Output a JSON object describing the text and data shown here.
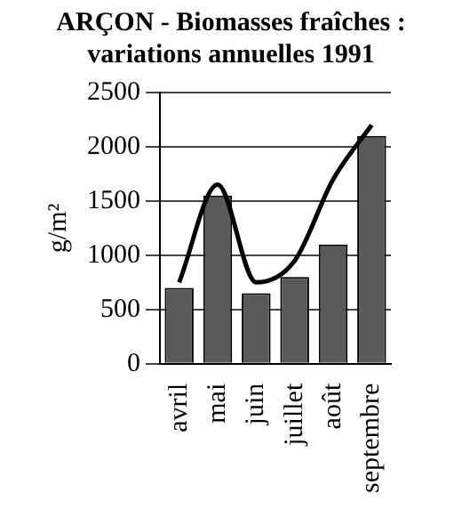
{
  "chart_data": {
    "type": "bar",
    "title": "ARÇON - Biomasses fraîches : variations annuelles 1991",
    "ylabel": "g/m²",
    "categories": [
      "avril",
      "mai",
      "juin",
      "juillet",
      "août",
      "septembre"
    ],
    "series": [
      {
        "color": "#5a5a5a",
        "values": [
          700,
          1550,
          650,
          800,
          1100,
          2100
        ]
      },
      {
        "type": "line",
        "color": "#000000",
        "values": [
          750,
          1650,
          750,
          950,
          1700,
          2200
        ]
      }
    ],
    "ylim": [
      0,
      2500
    ],
    "yticks": [
      0,
      500,
      1000,
      1500,
      2000,
      2500
    ],
    "grid": "y",
    "legend": false,
    "marker": "none"
  }
}
